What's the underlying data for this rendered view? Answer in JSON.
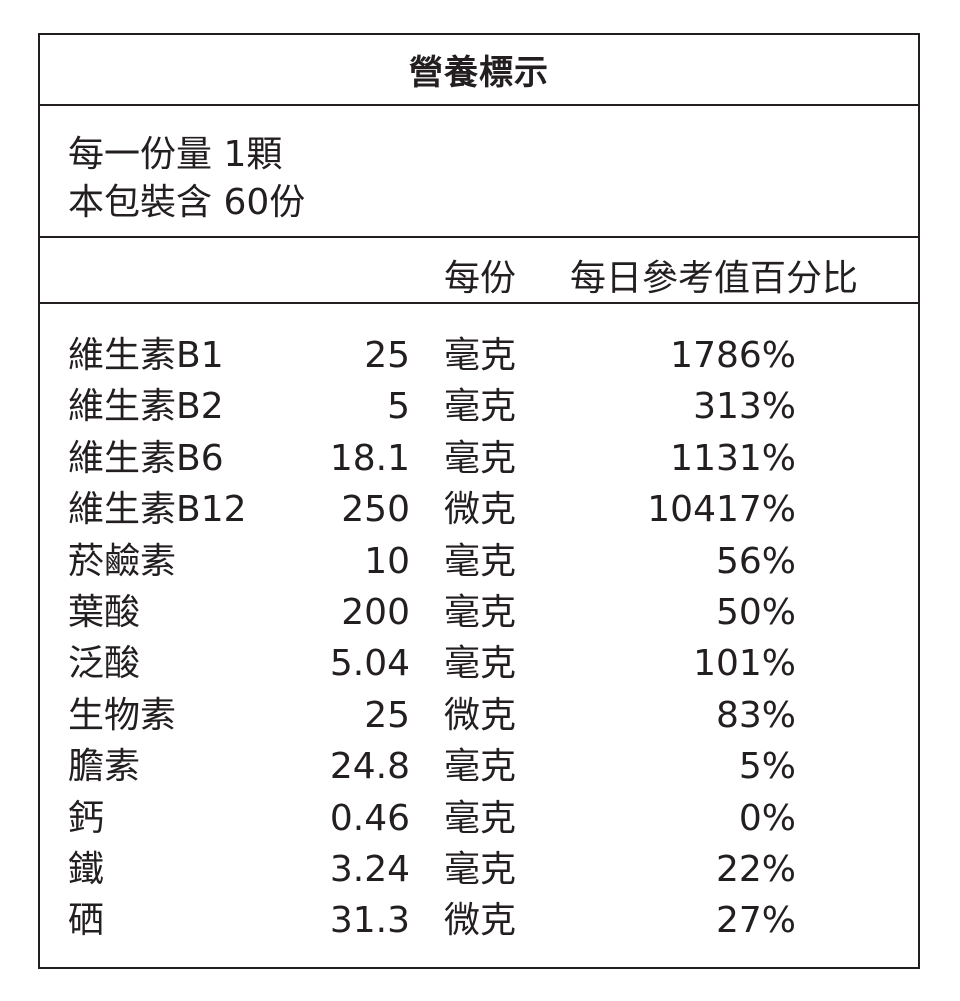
{
  "title": "營養標示",
  "serving": {
    "line1": "每一份量 1顆",
    "line2": "本包裝含 60份"
  },
  "header": {
    "per_serving": "每份",
    "daily_value": "每日參考值百分比"
  },
  "rows": [
    {
      "name": "維生素B1",
      "amount": "25",
      "unit": "毫克",
      "percent": "1786%"
    },
    {
      "name": "維生素B2",
      "amount": "5",
      "unit": "毫克",
      "percent": "313%"
    },
    {
      "name": "維生素B6",
      "amount": "18.1",
      "unit": "毫克",
      "percent": "1131%"
    },
    {
      "name": "維生素B12",
      "amount": "250",
      "unit": "微克",
      "percent": "10417%"
    },
    {
      "name": "菸鹼素",
      "amount": "10",
      "unit": "毫克",
      "percent": "56%"
    },
    {
      "name": "葉酸",
      "amount": "200",
      "unit": "毫克",
      "percent": "50%"
    },
    {
      "name": "泛酸",
      "amount": "5.04",
      "unit": "毫克",
      "percent": "101%"
    },
    {
      "name": "生物素",
      "amount": "25",
      "unit": "微克",
      "percent": "83%"
    },
    {
      "name": "膽素",
      "amount": "24.8",
      "unit": "毫克",
      "percent": "5%"
    },
    {
      "name": "鈣",
      "amount": "0.46",
      "unit": "毫克",
      "percent": "0%"
    },
    {
      "name": "鐵",
      "amount": "3.24",
      "unit": "毫克",
      "percent": "22%"
    },
    {
      "name": "硒",
      "amount": "31.3",
      "unit": "微克",
      "percent": "27%"
    }
  ]
}
